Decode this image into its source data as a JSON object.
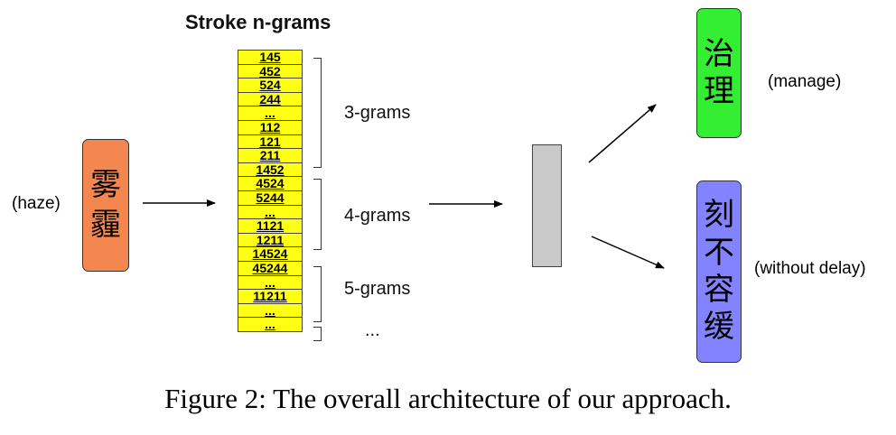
{
  "title": "Stroke n-grams",
  "input": {
    "chars": [
      "雾",
      "霾"
    ],
    "label": "(haze)",
    "color": "#f4874f"
  },
  "ngram_stack": {
    "cells": [
      "145",
      "452",
      "524",
      "244",
      "...",
      "112",
      "121",
      "211",
      "1452",
      "4524",
      "5244",
      "...",
      "1121",
      "1211",
      "14524",
      "45244",
      "...",
      "11211",
      "...",
      "..."
    ],
    "color": "#ffff14"
  },
  "groups": [
    {
      "label": "3-grams"
    },
    {
      "label": "4-grams"
    },
    {
      "label": "5-grams"
    },
    {
      "label": "..."
    }
  ],
  "outputs": [
    {
      "chars": [
        "治",
        "理"
      ],
      "label": "(manage)",
      "color": "#33ee33"
    },
    {
      "chars": [
        "刻",
        "不",
        "容",
        "缓"
      ],
      "label": "(without delay)",
      "color": "#8383ff"
    }
  ],
  "caption": "Figure 2: The overall architecture of our approach."
}
